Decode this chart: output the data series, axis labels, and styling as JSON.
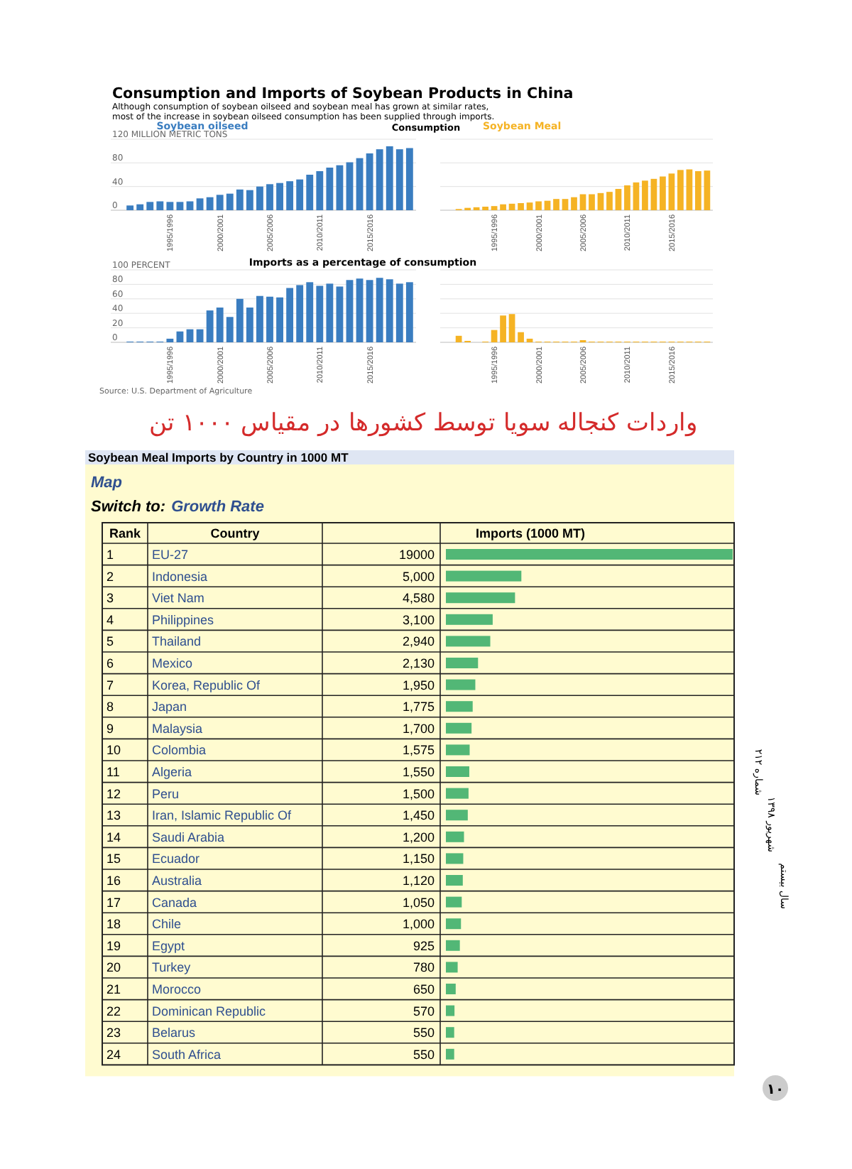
{
  "chart_data": [
    {
      "type": "bar",
      "title": "Consumption and Imports of Soybean Products in China",
      "subtitle": "Although consumption of soybean oilseed and soybean meal has grown at similar rates,\nmost of the increase in soybean oilseed consumption has been supplied through imports.",
      "annotations": [
        "Consumption"
      ],
      "categories": [
        null,
        null,
        null,
        null,
        "1995/1996",
        null,
        null,
        null,
        null,
        "2000/2001",
        null,
        null,
        null,
        null,
        "2005/2006",
        null,
        null,
        null,
        null,
        "2010/2011",
        null,
        null,
        null,
        null,
        "2015/2016",
        null,
        null,
        null,
        null
      ],
      "series": [
        {
          "name": "Soybean oilseed",
          "color": "#3a7dc0",
          "values": [
            8,
            10,
            14,
            15,
            14,
            14,
            15,
            20,
            22,
            26,
            28,
            35,
            34,
            40,
            44,
            46,
            49,
            52,
            60,
            66,
            72,
            76,
            81,
            88,
            96,
            103,
            108,
            103,
            105
          ]
        }
      ],
      "ylim": [
        0,
        120
      ],
      "yticks": [
        0,
        40,
        80,
        {
          "value": 120,
          "label": "120 MILLION METRIC TONS"
        }
      ],
      "grid": "y"
    },
    {
      "type": "bar",
      "categories": [
        null,
        null,
        null,
        null,
        "1995/1996",
        null,
        null,
        null,
        null,
        "2000/2001",
        null,
        null,
        null,
        null,
        "2005/2006",
        null,
        null,
        null,
        null,
        "2010/2011",
        null,
        null,
        null,
        null,
        "2015/2016",
        null,
        null,
        null,
        null
      ],
      "series": [
        {
          "name": "Soybean Meal",
          "color": "#f5b324",
          "values": [
            2,
            4,
            5,
            6,
            7,
            10,
            11,
            12,
            13,
            15,
            16,
            19,
            19,
            22,
            27,
            27,
            29,
            31,
            36,
            42,
            47,
            50,
            53,
            57,
            62,
            68,
            69,
            66,
            67
          ]
        }
      ],
      "ylim": [
        0,
        120
      ],
      "yticks": [
        0,
        40,
        80,
        120
      ],
      "grid": "y",
      "tick_labels": "x"
    },
    {
      "type": "bar",
      "title": "Imports as a percentage of consumption",
      "annotations": [
        "Source: U.S. Department of Agriculture"
      ],
      "categories": [
        null,
        null,
        null,
        null,
        "1995/1996",
        null,
        null,
        null,
        null,
        "2000/2001",
        null,
        null,
        null,
        null,
        "2005/2006",
        null,
        null,
        null,
        null,
        "2010/2011",
        null,
        null,
        null,
        null,
        "2015/2016",
        null,
        null,
        null,
        null
      ],
      "series": [
        {
          "color": "#3a7dc0",
          "values": [
            1,
            1,
            1,
            1,
            5,
            15,
            18,
            18,
            44,
            48,
            35,
            60,
            48,
            64,
            63,
            62,
            75,
            79,
            83,
            78,
            81,
            77,
            86,
            88,
            86,
            89,
            87,
            81,
            83
          ]
        }
      ],
      "ylim": [
        0,
        100
      ],
      "yticks": [
        0,
        20,
        40,
        60,
        80,
        {
          "value": 100,
          "label": "100 PERCENT"
        }
      ],
      "grid": "y"
    },
    {
      "type": "bar",
      "categories": [
        null,
        null,
        null,
        null,
        "1995/1996",
        null,
        null,
        null,
        null,
        "2000/2001",
        null,
        null,
        null,
        null,
        "2005/2006",
        null,
        null,
        null,
        null,
        "2010/2011",
        null,
        null,
        null,
        null,
        "2015/2016",
        null,
        null,
        null,
        null
      ],
      "series": [
        {
          "color": "#f5b324",
          "values": [
            9,
            2,
            0,
            1,
            17,
            37,
            39,
            14,
            5,
            1,
            1,
            1,
            1,
            1,
            3,
            1,
            1,
            1,
            1,
            1,
            1,
            1,
            1,
            1,
            1,
            1,
            1,
            1,
            1
          ]
        }
      ],
      "ylim": [
        0,
        100
      ],
      "yticks": [
        0,
        20,
        40,
        60,
        80,
        100
      ],
      "grid": "y",
      "tick_labels": "x"
    },
    {
      "type": "bar",
      "orientation": "horizontal",
      "title": "واردات کنجاله سویا توسط کشورها در مقیاس ۱۰۰۰ تن",
      "subtitle": "Soybean Meal Imports by Country in 1000 MT",
      "xlabel": "Imports (1000 MT)",
      "ylabel": "Country",
      "annotations": [
        "Map",
        "Switch to:",
        "Growth Rate",
        "Rank",
        "1",
        "2",
        "3",
        "4",
        "5",
        "6",
        "7",
        "8",
        "9",
        "10",
        "11",
        "12",
        "13",
        "14",
        "15",
        "16",
        "17",
        "18",
        "19",
        "20",
        "21",
        "22",
        "23",
        "24",
        "شماره ۲۱۲",
        "شهریور ۱۳۹۸",
        "سال بیستم",
        "۱۰"
      ],
      "categories": [
        "EU-27",
        "Indonesia",
        "Viet Nam",
        "Philippines",
        "Thailand",
        "Mexico",
        "Korea, Republic Of",
        "Japan",
        "Malaysia",
        "Colombia",
        "Algeria",
        "Peru",
        "Iran, Islamic Republic Of",
        "Saudi Arabia",
        "Ecuador",
        "Australia",
        "Canada",
        "Chile",
        "Egypt",
        "Turkey",
        "Morocco",
        "Dominican Republic",
        "Belarus",
        "South Africa"
      ],
      "series": [
        {
          "color": "#52b776",
          "values": [
            19000,
            5000,
            4580,
            3100,
            2940,
            2130,
            1950,
            1775,
            1700,
            1575,
            1550,
            1500,
            1450,
            1200,
            1150,
            1120,
            1050,
            1000,
            925,
            780,
            650,
            570,
            550,
            550
          ],
          "value_labels": [
            "19000",
            "5,000",
            "4,580",
            "3,100",
            "2,940",
            "2,130",
            "1,950",
            "1,775",
            "1,700",
            "1,575",
            "1,550",
            "1,500",
            "1,450",
            "1,200",
            "1,150",
            "1,120",
            "1,050",
            "1,000",
            "925",
            "780",
            "650",
            "570",
            "550",
            "550"
          ]
        }
      ]
    }
  ]
}
